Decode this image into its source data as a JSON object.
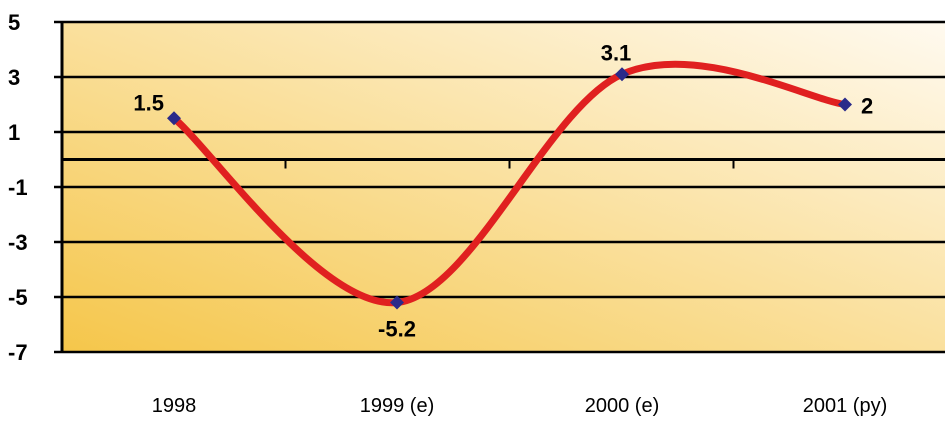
{
  "chart_data": {
    "type": "line",
    "categories": [
      "1998",
      "1999 (e)",
      "2000 (e)",
      "2001 (py)"
    ],
    "series": [
      {
        "values": [
          1.5,
          -5.2,
          3.1,
          2
        ],
        "data_labels": [
          "1.5",
          "-5.2",
          "3.1",
          "2"
        ],
        "color": "#e02020",
        "marker_color": "#2a2a8a"
      }
    ],
    "yticks": [
      "5",
      "3",
      "1",
      "-1",
      "-3",
      "-5",
      "-7"
    ],
    "ylim": [
      -7,
      5
    ],
    "zero_line": 0,
    "grid": true,
    "legend": "none",
    "background_colors": [
      "#f5c64a",
      "#fffaf0"
    ]
  }
}
